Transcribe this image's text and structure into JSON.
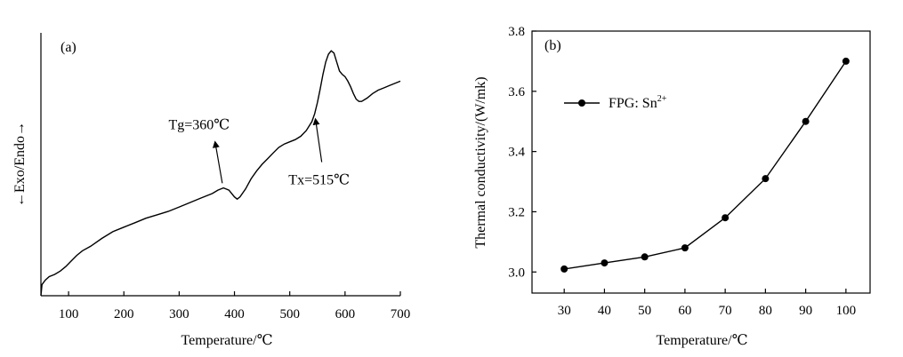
{
  "chart_data": [
    {
      "type": "line",
      "panel_label": "(a)",
      "xlabel": "Temperature/℃",
      "ylabel": "←Exo/Endo→",
      "xlim": [
        50,
        700
      ],
      "x_ticks": [
        "100",
        "200",
        "300",
        "400",
        "500",
        "600",
        "700"
      ],
      "y_ticks": [],
      "grid": false,
      "series": [
        {
          "x": [
            50,
            52,
            58,
            65,
            75,
            85,
            95,
            105,
            115,
            125,
            140,
            160,
            180,
            200,
            220,
            240,
            260,
            280,
            300,
            320,
            340,
            360,
            370,
            380,
            390,
            400,
            405,
            410,
            420,
            430,
            440,
            450,
            460,
            470,
            480,
            490,
            500,
            510,
            520,
            530,
            540,
            545,
            550,
            555,
            560,
            565,
            570,
            575,
            580,
            585,
            590,
            595,
            600,
            605,
            610,
            615,
            620,
            625,
            630,
            640,
            650,
            660,
            670,
            680,
            690,
            700
          ],
          "y": [
            0.0,
            0.05,
            0.07,
            0.085,
            0.095,
            0.11,
            0.13,
            0.155,
            0.18,
            0.2,
            0.22,
            0.255,
            0.285,
            0.305,
            0.325,
            0.345,
            0.36,
            0.375,
            0.395,
            0.415,
            0.435,
            0.455,
            0.47,
            0.48,
            0.47,
            0.44,
            0.43,
            0.44,
            0.475,
            0.52,
            0.555,
            0.585,
            0.61,
            0.635,
            0.66,
            0.675,
            0.685,
            0.695,
            0.71,
            0.735,
            0.775,
            0.81,
            0.86,
            0.92,
            0.985,
            1.04,
            1.075,
            1.09,
            1.08,
            1.04,
            1.0,
            0.985,
            0.975,
            0.955,
            0.93,
            0.9,
            0.875,
            0.865,
            0.865,
            0.88,
            0.9,
            0.915,
            0.925,
            0.935,
            0.945,
            0.955
          ]
        }
      ],
      "annotations": [
        {
          "text": "Tg=360℃",
          "x": 378,
          "y": 0.485
        },
        {
          "text": "Tx=515℃",
          "x": 545,
          "y": 0.8
        }
      ]
    },
    {
      "type": "line",
      "panel_label": "(b)",
      "xlabel": "Temperature/℃",
      "ylabel": "Thermal conductivity/(W/mk)",
      "xlim": [
        22,
        106
      ],
      "ylim": [
        2.93,
        3.8
      ],
      "x_ticks": [
        "30",
        "40",
        "50",
        "60",
        "70",
        "80",
        "90",
        "100"
      ],
      "y_ticks": [
        "3.0",
        "3.2",
        "3.4",
        "3.6",
        "3.8"
      ],
      "grid": false,
      "legend": {
        "position": "top-left",
        "text": "FPG: Sn",
        "superscript": "2+"
      },
      "series": [
        {
          "name": "FPG: Sn2+",
          "x": [
            30,
            40,
            50,
            60,
            70,
            80,
            90,
            100
          ],
          "y": [
            3.01,
            3.03,
            3.05,
            3.08,
            3.18,
            3.31,
            3.5,
            3.7
          ]
        }
      ]
    }
  ]
}
